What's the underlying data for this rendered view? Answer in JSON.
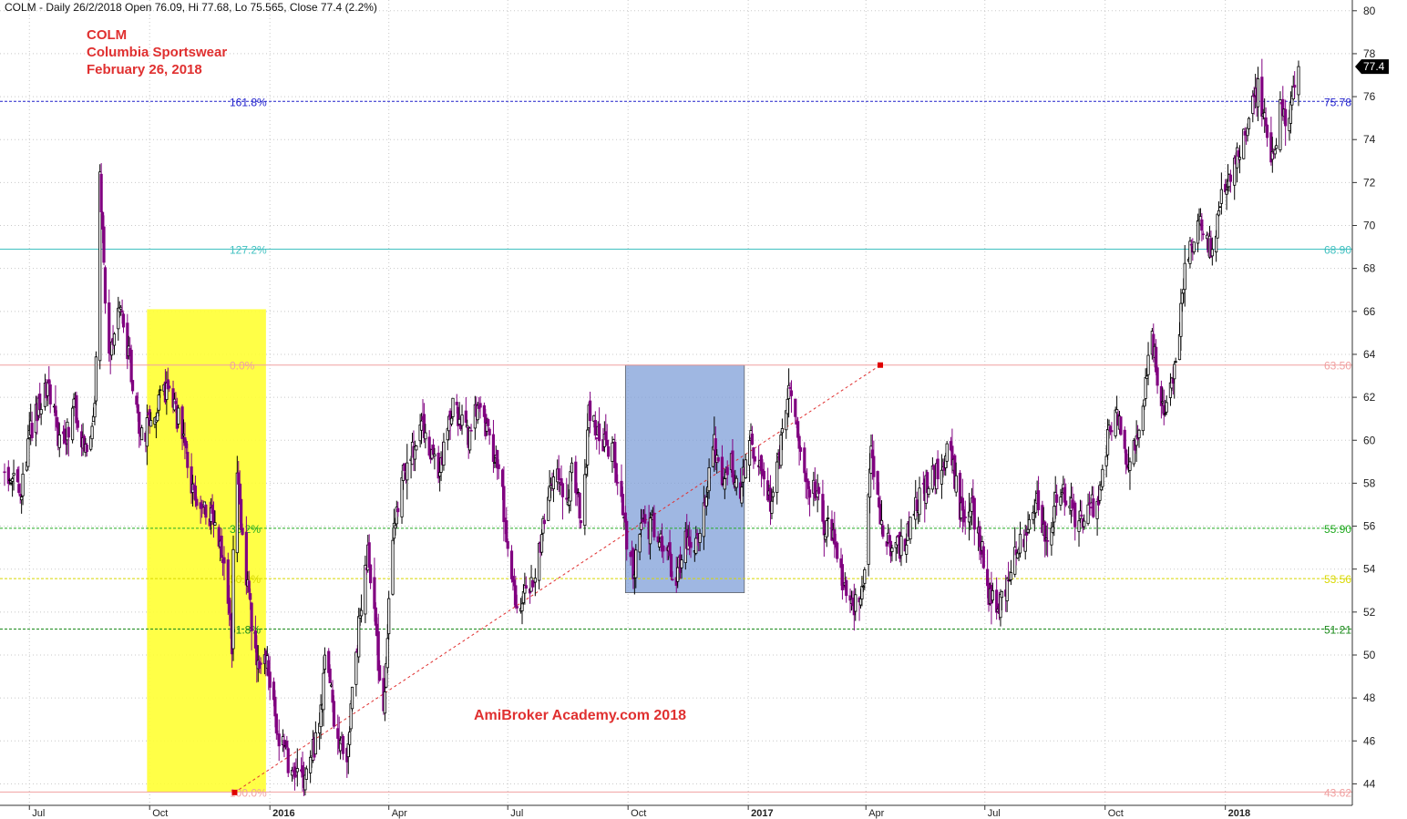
{
  "header": {
    "text": "COLM - Daily 26/2/2018 Open 76.09, Hi 77.68, Lo 75.565, Close 77.4 (2.2%)"
  },
  "title_lines": [
    "COLM",
    "Columbia Sportswear",
    "February 26, 2018"
  ],
  "watermark": "AmiBroker Academy.com 2018",
  "colors": {
    "up_candle": "#000000",
    "down_candle": "#800080",
    "grid": "#c8c8c8",
    "title": "#e03030",
    "yellow_box": "#ffff33",
    "blue_box": "#7f9fd8",
    "trend": "#e03030"
  },
  "chart_data": {
    "type": "candlestick",
    "symbol": "COLM",
    "interval": "Daily",
    "y_range": [
      43,
      80.5
    ],
    "x_range": [
      "2015-06-12",
      "2018-02-26"
    ],
    "y_ticks": [
      44,
      46,
      48,
      50,
      52,
      54,
      56,
      58,
      60,
      62,
      64,
      66,
      68,
      70,
      72,
      74,
      76,
      78,
      80
    ],
    "x_ticks": [
      {
        "label": "Jul",
        "date": "2015-07-01",
        "major": false
      },
      {
        "label": "Oct",
        "date": "2015-10-01",
        "major": false
      },
      {
        "label": "2016",
        "date": "2016-01-01",
        "major": true
      },
      {
        "label": "Apr",
        "date": "2016-04-01",
        "major": false
      },
      {
        "label": "Jul",
        "date": "2016-07-01",
        "major": false
      },
      {
        "label": "Oct",
        "date": "2016-10-01",
        "major": false
      },
      {
        "label": "2017",
        "date": "2017-01-01",
        "major": true
      },
      {
        "label": "Apr",
        "date": "2017-04-01",
        "major": false
      },
      {
        "label": "Jul",
        "date": "2017-07-01",
        "major": false
      },
      {
        "label": "Oct",
        "date": "2017-10-01",
        "major": false
      },
      {
        "label": "2018",
        "date": "2018-01-01",
        "major": true
      }
    ],
    "grid": true,
    "last_price": {
      "value": 77.4,
      "label": "77.4"
    },
    "ohlc_last": {
      "date": "2018-02-26",
      "open": 76.09,
      "high": 77.68,
      "low": 75.565,
      "close": 77.4,
      "change_pct": 2.2
    },
    "price_path": [
      [
        "2015-06-12",
        58.5
      ],
      [
        "2015-06-25",
        57.5
      ],
      [
        "2015-07-02",
        60.5
      ],
      [
        "2015-07-15",
        62.5
      ],
      [
        "2015-07-25",
        59.5
      ],
      [
        "2015-08-05",
        61.5
      ],
      [
        "2015-08-15",
        59
      ],
      [
        "2015-08-20",
        61.5
      ],
      [
        "2015-08-24",
        72
      ],
      [
        "2015-08-30",
        64
      ],
      [
        "2015-09-08",
        66
      ],
      [
        "2015-09-15",
        64
      ],
      [
        "2015-09-25",
        60
      ],
      [
        "2015-10-05",
        61.5
      ],
      [
        "2015-10-15",
        62.5
      ],
      [
        "2015-10-25",
        60.5
      ],
      [
        "2015-11-01",
        58
      ],
      [
        "2015-11-10",
        57
      ],
      [
        "2015-11-20",
        56
      ],
      [
        "2015-11-27",
        54
      ],
      [
        "2015-12-03",
        50.5
      ],
      [
        "2015-12-05",
        60
      ],
      [
        "2015-12-10",
        56
      ],
      [
        "2015-12-15",
        53
      ],
      [
        "2015-12-22",
        50
      ],
      [
        "2015-12-30",
        49.5
      ],
      [
        "2016-01-07",
        46.5
      ],
      [
        "2016-01-15",
        45
      ],
      [
        "2016-01-22",
        44.5
      ],
      [
        "2016-01-28",
        44
      ],
      [
        "2016-02-03",
        45.5
      ],
      [
        "2016-02-08",
        47
      ],
      [
        "2016-02-13",
        50
      ],
      [
        "2016-02-18",
        47.5
      ],
      [
        "2016-02-23",
        46
      ],
      [
        "2016-02-28",
        45
      ],
      [
        "2016-03-04",
        48
      ],
      [
        "2016-03-10",
        52
      ],
      [
        "2016-03-16",
        55
      ],
      [
        "2016-03-22",
        51
      ],
      [
        "2016-03-28",
        47
      ],
      [
        "2016-04-03",
        55
      ],
      [
        "2016-04-10",
        58
      ],
      [
        "2016-04-18",
        59.5
      ],
      [
        "2016-04-28",
        60.5
      ],
      [
        "2016-05-10",
        58.5
      ],
      [
        "2016-05-20",
        61.5
      ],
      [
        "2016-06-01",
        60
      ],
      [
        "2016-06-10",
        62
      ],
      [
        "2016-06-18",
        59.5
      ],
      [
        "2016-06-26",
        58
      ],
      [
        "2016-07-03",
        53
      ],
      [
        "2016-07-12",
        52.5
      ],
      [
        "2016-07-22",
        53.5
      ],
      [
        "2016-07-30",
        56.5
      ],
      [
        "2016-08-08",
        59
      ],
      [
        "2016-08-15",
        57
      ],
      [
        "2016-08-20",
        59
      ],
      [
        "2016-08-27",
        56
      ],
      [
        "2016-09-01",
        61.5
      ],
      [
        "2016-09-10",
        60
      ],
      [
        "2016-09-20",
        59.5
      ],
      [
        "2016-09-28",
        56
      ],
      [
        "2016-10-05",
        54
      ],
      [
        "2016-10-12",
        56
      ],
      [
        "2016-10-22",
        56
      ],
      [
        "2016-10-30",
        55
      ],
      [
        "2016-11-07",
        53.5
      ],
      [
        "2016-11-15",
        55.5
      ],
      [
        "2016-11-22",
        55
      ],
      [
        "2016-11-29",
        57
      ],
      [
        "2016-12-05",
        60
      ],
      [
        "2016-12-12",
        58
      ],
      [
        "2016-12-18",
        59
      ],
      [
        "2016-12-25",
        57.5
      ],
      [
        "2017-01-02",
        60
      ],
      [
        "2017-01-10",
        59
      ],
      [
        "2017-01-18",
        57
      ],
      [
        "2017-01-26",
        60
      ],
      [
        "2017-02-02",
        63
      ],
      [
        "2017-02-08",
        60.5
      ],
      [
        "2017-02-15",
        58
      ],
      [
        "2017-02-22",
        57.5
      ],
      [
        "2017-02-28",
        56
      ],
      [
        "2017-03-08",
        55.5
      ],
      [
        "2017-03-15",
        53
      ],
      [
        "2017-03-22",
        52
      ],
      [
        "2017-03-30",
        53
      ],
      [
        "2017-04-05",
        60
      ],
      [
        "2017-04-12",
        56
      ],
      [
        "2017-04-20",
        55
      ],
      [
        "2017-04-28",
        55
      ],
      [
        "2017-05-05",
        56
      ],
      [
        "2017-05-12",
        57.5
      ],
      [
        "2017-05-20",
        58
      ],
      [
        "2017-05-28",
        59
      ],
      [
        "2017-06-05",
        59.5
      ],
      [
        "2017-06-12",
        56.5
      ],
      [
        "2017-06-19",
        57
      ],
      [
        "2017-06-26",
        56
      ],
      [
        "2017-07-03",
        53
      ],
      [
        "2017-07-10",
        52
      ],
      [
        "2017-07-18",
        53.5
      ],
      [
        "2017-07-26",
        55
      ],
      [
        "2017-08-03",
        56
      ],
      [
        "2017-08-10",
        57
      ],
      [
        "2017-08-18",
        55.5
      ],
      [
        "2017-08-26",
        57.5
      ],
      [
        "2017-09-02",
        57.5
      ],
      [
        "2017-09-10",
        56
      ],
      [
        "2017-09-18",
        56.5
      ],
      [
        "2017-09-26",
        57.5
      ],
      [
        "2017-10-03",
        60
      ],
      [
        "2017-10-10",
        61.5
      ],
      [
        "2017-10-18",
        59
      ],
      [
        "2017-10-25",
        60
      ],
      [
        "2017-11-01",
        62.5
      ],
      [
        "2017-11-06",
        65
      ],
      [
        "2017-11-12",
        62
      ],
      [
        "2017-11-18",
        61.5
      ],
      [
        "2017-11-24",
        63.5
      ],
      [
        "2017-12-01",
        68
      ],
      [
        "2017-12-08",
        69.5
      ],
      [
        "2017-12-15",
        70
      ],
      [
        "2017-12-22",
        68.5
      ],
      [
        "2017-12-29",
        71.5
      ],
      [
        "2018-01-05",
        72.5
      ],
      [
        "2018-01-12",
        73.5
      ],
      [
        "2018-01-19",
        75
      ],
      [
        "2018-01-26",
        76.5
      ],
      [
        "2018-02-01",
        74.5
      ],
      [
        "2018-02-06",
        73
      ],
      [
        "2018-02-12",
        75.5
      ],
      [
        "2018-02-19",
        75
      ],
      [
        "2018-02-26",
        77.4
      ]
    ],
    "fib_levels": [
      {
        "pct": "161.8%",
        "price": "75.78",
        "value": 75.78,
        "color": "#2020cc",
        "dash": true
      },
      {
        "pct": "127.2%",
        "price": "68.90",
        "value": 68.9,
        "color": "#40c0c0",
        "dash": false
      },
      {
        "pct": "0.0%",
        "price": "63.50",
        "value": 63.5,
        "color": "#f0a0a0",
        "dash": false
      },
      {
        "pct": "38.2%",
        "price": "55.90",
        "value": 55.9,
        "color": "#22aa22",
        "dash": true
      },
      {
        "pct": "50.0%",
        "price": "53.56",
        "value": 53.56,
        "color": "#d8d800",
        "dash": true
      },
      {
        "pct": "61.8%",
        "price": "51.21",
        "value": 51.21,
        "color": "#1a8a1a",
        "dash": true
      },
      {
        "pct": "100.0%",
        "price": "43.62",
        "value": 43.62,
        "color": "#f0a0a0",
        "dash": false
      }
    ],
    "boxes": [
      {
        "name": "yellow-zone",
        "x0": "2015-09-29",
        "x1": "2015-12-29",
        "y0": 43.6,
        "y1": 66.1
      },
      {
        "name": "blue-zone",
        "x0": "2016-09-29",
        "x1": "2016-12-29",
        "y0": 52.9,
        "y1": 63.5
      }
    ],
    "trend_line": {
      "x0": "2015-12-05",
      "y0": 43.6,
      "x1": "2017-04-12",
      "y1": 63.5
    }
  }
}
